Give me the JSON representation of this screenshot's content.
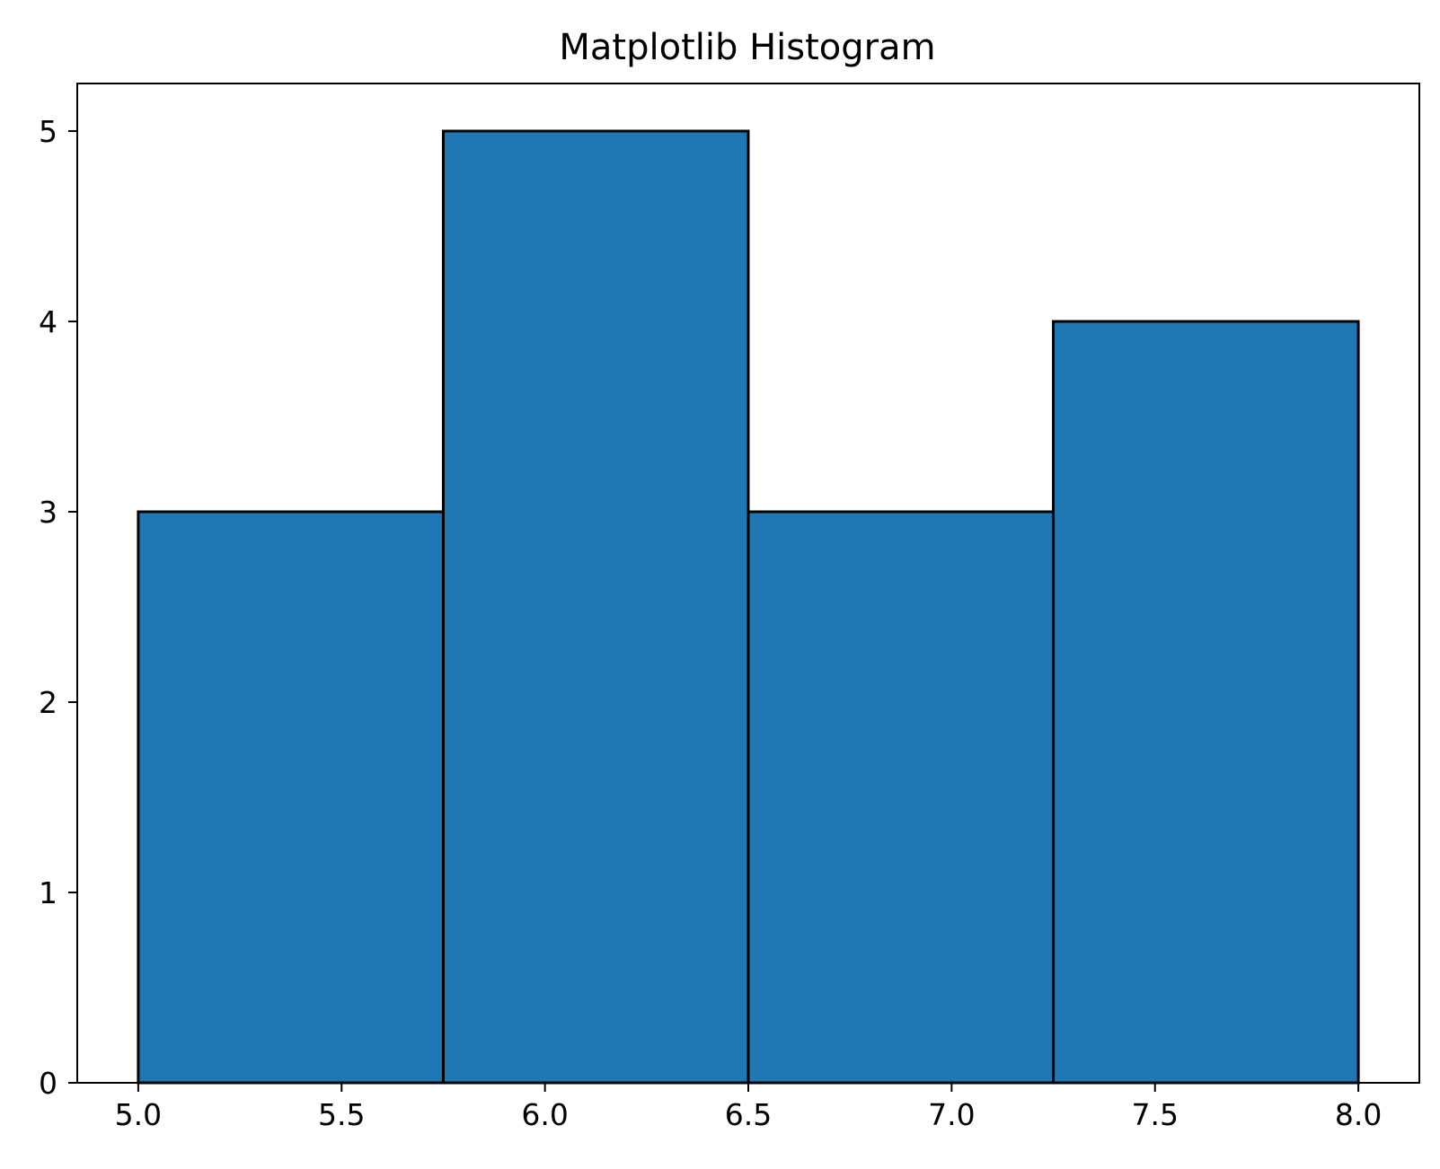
{
  "chart_data": {
    "type": "histogram",
    "title": "Matplotlib Histogram",
    "xlabel": "",
    "ylabel": "",
    "bin_edges": [
      5.0,
      5.75,
      6.5,
      7.25,
      8.0
    ],
    "values": [
      3,
      5,
      3,
      4
    ],
    "xlim": [
      4.85,
      8.15
    ],
    "ylim": [
      0,
      5.25
    ],
    "x_ticks": [
      5.0,
      5.5,
      6.0,
      6.5,
      7.0,
      7.5,
      8.0
    ],
    "x_tick_labels": [
      "5.0",
      "5.5",
      "6.0",
      "6.5",
      "7.0",
      "7.5",
      "8.0"
    ],
    "y_ticks": [
      0,
      1,
      2,
      3,
      4,
      5
    ],
    "y_tick_labels": [
      "0",
      "1",
      "2",
      "3",
      "4",
      "5"
    ],
    "grid": false,
    "legend": "none",
    "colors": {
      "bar_fill": "#1f77b4",
      "bar_edge": "#000000",
      "axes": "#000000",
      "background": "#ffffff"
    }
  }
}
